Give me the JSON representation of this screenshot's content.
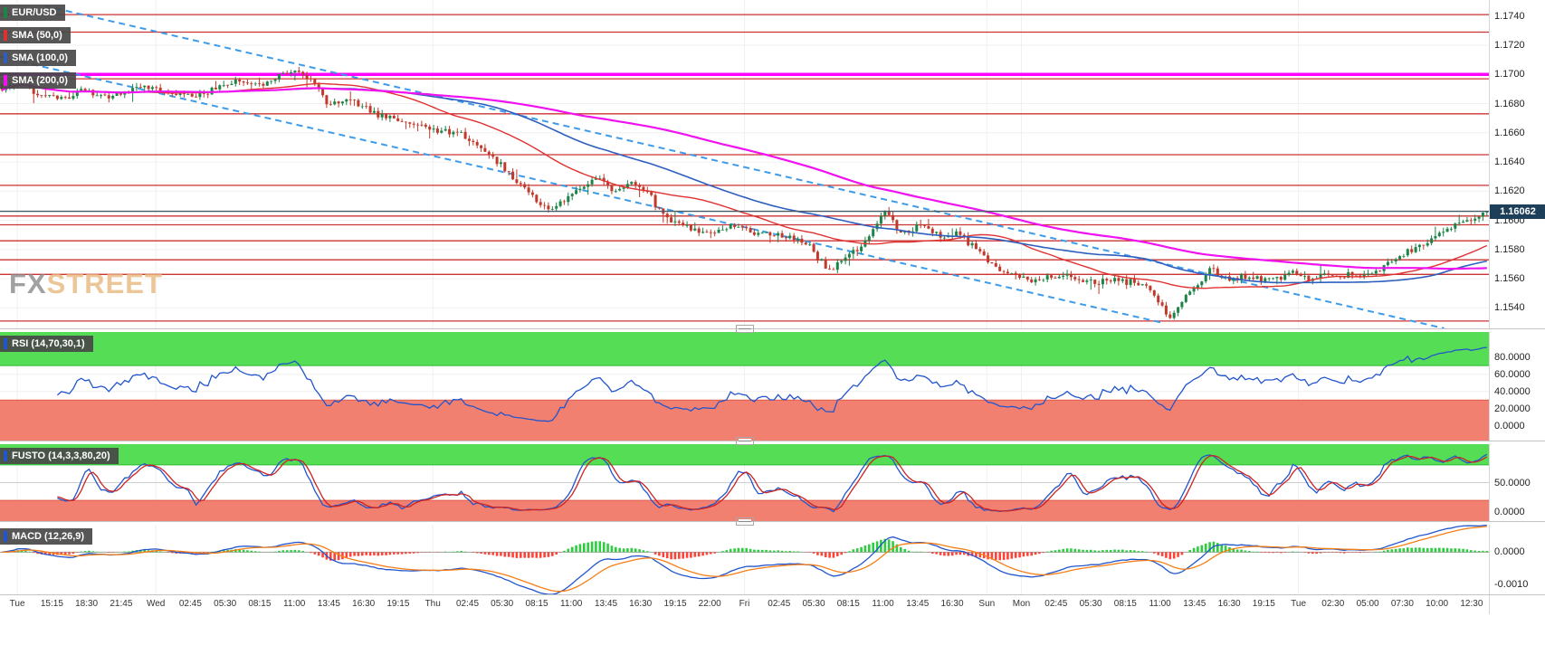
{
  "app": {
    "watermark_fx": "FX",
    "watermark_street": "STREET"
  },
  "main_panel": {
    "legend": [
      {
        "label": "EUR/USD",
        "color": "#1d8348"
      },
      {
        "label": "SMA (50,0)",
        "color": "#e03131"
      },
      {
        "label": "SMA (100,0)",
        "color": "#2e5fbf"
      },
      {
        "label": "SMA (200,0)",
        "color": "#f012f0"
      }
    ],
    "last_price_label": "1.16062"
  },
  "rsi_panel": {
    "legend": {
      "label": "RSI (14,70,30,1)",
      "color": "#2255cc"
    }
  },
  "stoch_panel": {
    "legend": {
      "label": "FUSTO (14,3,3,80,20)",
      "color": "#2255cc"
    }
  },
  "macd_panel": {
    "legend": {
      "label": "MACD (12,26,9)",
      "color": "#2255cc"
    }
  },
  "colors": {
    "background": "#ffffff",
    "grid": "#f0f0f0",
    "candle_up": "#1d8348",
    "candle_down": "#c0392b",
    "resistance_line": "#cc3333",
    "magenta_line": "#ff00ff",
    "channel_line": "#3d9be9",
    "current_price_line": "#455a64",
    "badge_bg": "#1e3f5a",
    "badge_text": "#ffffff",
    "rsi_line": "#2255cc",
    "stoch_k": "#2255cc",
    "stoch_d": "#cc2222",
    "macd_line": "#2255cc",
    "macd_signal": "#f57f17",
    "hist_up": "#2ecc40",
    "hist_down": "#ff4136",
    "zone_green": "#55dd55",
    "zone_green_edge": "#2db82d",
    "zone_red": "#f28070",
    "zone_red_edge": "#e05a4a",
    "midline": "#cfcfcf",
    "zero_line": "#a0a0a0",
    "watermark_fx": "#8a8a8a",
    "watermark_street": "#e8b87e"
  },
  "chart_data": {
    "type": "candlestick",
    "symbol": "EUR/USD",
    "timeframe": "15m",
    "last_price": 1.16062,
    "candle_count": 376,
    "price_axis": {
      "range": [
        1.1526,
        1.1751
      ],
      "ticks": [
        1.174,
        1.172,
        1.17,
        1.168,
        1.166,
        1.164,
        1.162,
        1.16,
        1.158,
        1.156,
        1.154
      ]
    },
    "price_anchors": [
      [
        0,
        1.1691
      ],
      [
        0.01,
        1.1696
      ],
      [
        0.022,
        1.1688
      ],
      [
        0.04,
        1.1684
      ],
      [
        0.055,
        1.1689
      ],
      [
        0.07,
        1.1684
      ],
      [
        0.085,
        1.1689
      ],
      [
        0.1,
        1.1692
      ],
      [
        0.115,
        1.1687
      ],
      [
        0.13,
        1.1684
      ],
      [
        0.145,
        1.1692
      ],
      [
        0.16,
        1.1696
      ],
      [
        0.175,
        1.1693
      ],
      [
        0.19,
        1.17
      ],
      [
        0.2,
        1.1703
      ],
      [
        0.21,
        1.1695
      ],
      [
        0.22,
        1.1678
      ],
      [
        0.23,
        1.1684
      ],
      [
        0.24,
        1.1679
      ],
      [
        0.255,
        1.1671
      ],
      [
        0.27,
        1.1668
      ],
      [
        0.285,
        1.1664
      ],
      [
        0.3,
        1.1661
      ],
      [
        0.31,
        1.1658
      ],
      [
        0.322,
        1.165
      ],
      [
        0.335,
        1.1638
      ],
      [
        0.348,
        1.1626
      ],
      [
        0.36,
        1.1612
      ],
      [
        0.37,
        1.1607
      ],
      [
        0.38,
        1.1615
      ],
      [
        0.392,
        1.1624
      ],
      [
        0.4,
        1.1629
      ],
      [
        0.412,
        1.1621
      ],
      [
        0.424,
        1.1625
      ],
      [
        0.435,
        1.1618
      ],
      [
        0.444,
        1.1606
      ],
      [
        0.455,
        1.1598
      ],
      [
        0.468,
        1.1594
      ],
      [
        0.48,
        1.1592
      ],
      [
        0.492,
        1.1597
      ],
      [
        0.505,
        1.1592
      ],
      [
        0.518,
        1.159
      ],
      [
        0.53,
        1.1587
      ],
      [
        0.543,
        1.1585
      ],
      [
        0.552,
        1.1571
      ],
      [
        0.558,
        1.1566
      ],
      [
        0.568,
        1.1574
      ],
      [
        0.58,
        1.1583
      ],
      [
        0.59,
        1.16
      ],
      [
        0.596,
        1.1608
      ],
      [
        0.602,
        1.1594
      ],
      [
        0.61,
        1.159
      ],
      [
        0.618,
        1.1598
      ],
      [
        0.626,
        1.1592
      ],
      [
        0.635,
        1.1588
      ],
      [
        0.645,
        1.1591
      ],
      [
        0.655,
        1.1581
      ],
      [
        0.665,
        1.1571
      ],
      [
        0.676,
        1.1565
      ],
      [
        0.688,
        1.1561
      ],
      [
        0.7,
        1.1559
      ],
      [
        0.712,
        1.1563
      ],
      [
        0.724,
        1.156
      ],
      [
        0.736,
        1.1557
      ],
      [
        0.748,
        1.1561
      ],
      [
        0.76,
        1.1557
      ],
      [
        0.772,
        1.1554
      ],
      [
        0.78,
        1.1543
      ],
      [
        0.786,
        1.1532
      ],
      [
        0.792,
        1.1541
      ],
      [
        0.8,
        1.1551
      ],
      [
        0.808,
        1.1559
      ],
      [
        0.814,
        1.1568
      ],
      [
        0.82,
        1.1562
      ],
      [
        0.83,
        1.1559
      ],
      [
        0.84,
        1.1562
      ],
      [
        0.85,
        1.1559
      ],
      [
        0.86,
        1.1561
      ],
      [
        0.87,
        1.1563
      ],
      [
        0.88,
        1.156
      ],
      [
        0.89,
        1.1562
      ],
      [
        0.9,
        1.1564
      ],
      [
        0.91,
        1.1561
      ],
      [
        0.92,
        1.1563
      ],
      [
        0.93,
        1.1567
      ],
      [
        0.94,
        1.1574
      ],
      [
        0.95,
        1.158
      ],
      [
        0.96,
        1.1586
      ],
      [
        0.97,
        1.1591
      ],
      [
        0.98,
        1.1597
      ],
      [
        0.99,
        1.1601
      ],
      [
        1,
        1.16062
      ]
    ],
    "overlays": [
      {
        "name": "SMA (50,0)",
        "period": 50,
        "color": "#e03131"
      },
      {
        "name": "SMA (100,0)",
        "period": 100,
        "color": "#2e5fbf"
      },
      {
        "name": "SMA (200,0)",
        "period": 200,
        "color": "#f012f0"
      }
    ],
    "horizontal_lines": {
      "red": [
        1.1741,
        1.1729,
        1.1697,
        1.1673,
        1.1645,
        1.1624,
        1.1603,
        1.1597,
        1.1586,
        1.1573,
        1.1563,
        1.1531
      ],
      "magenta": 1.17,
      "current": 1.16062
    },
    "trend_channel": {
      "style": "dashed",
      "color": "#3d9be9",
      "upper": [
        [
          0.03,
          1.1747
        ],
        [
          0.97,
          1.1526
        ]
      ],
      "lower": [
        [
          0.0,
          1.1712
        ],
        [
          0.78,
          1.153
        ]
      ]
    },
    "indicators": [
      {
        "name": "RSI (14,70,30,1)",
        "type": "rsi",
        "period": 14,
        "overbought": 70,
        "oversold": 30,
        "range": [
          -17,
          109
        ],
        "ticks": [
          80,
          60,
          40,
          20,
          0
        ]
      },
      {
        "name": "FUSTO (14,3,3,80,20)",
        "type": "stochastic",
        "k": 14,
        "k_smooth": 3,
        "d": 3,
        "upper": 80,
        "lower": 20,
        "range": [
          -15,
          115
        ],
        "ticks": [
          50,
          0
        ]
      },
      {
        "name": "MACD (12,26,9)",
        "type": "macd",
        "fast": 12,
        "slow": 26,
        "signal": 9,
        "range": [
          -0.0013,
          0.00085
        ],
        "ticks": [
          0,
          -0.001
        ]
      }
    ],
    "time_axis": [
      "Tue",
      "15:15",
      "18:30",
      "21:45",
      "Wed",
      "02:45",
      "05:30",
      "08:15",
      "11:00",
      "13:45",
      "16:30",
      "19:15",
      "Thu",
      "02:45",
      "05:30",
      "08:15",
      "11:00",
      "13:45",
      "16:30",
      "19:15",
      "22:00",
      "Fri",
      "02:45",
      "05:30",
      "08:15",
      "11:00",
      "13:45",
      "16:30",
      "Sun",
      "Mon",
      "02:45",
      "05:30",
      "08:15",
      "11:00",
      "13:45",
      "16:30",
      "19:15",
      "Tue",
      "02:30",
      "05:00",
      "07:30",
      "10:00",
      "12:30"
    ]
  }
}
